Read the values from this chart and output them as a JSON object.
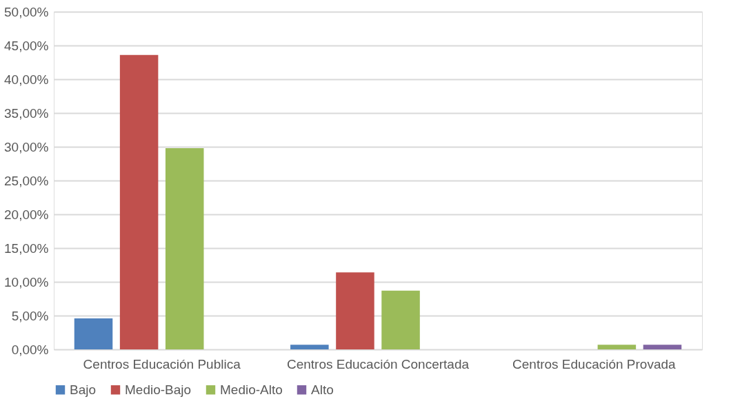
{
  "chart_data": {
    "type": "bar",
    "categories": [
      "Centros Educación Publica",
      "Centros Educación Concertada",
      "Centros Educación Provada"
    ],
    "series": [
      {
        "name": "Bajo",
        "color": "#4f81bd",
        "values": [
          4.6,
          0.7,
          null
        ]
      },
      {
        "name": "Medio-Bajo",
        "color": "#c0504d",
        "values": [
          43.6,
          11.4,
          null
        ]
      },
      {
        "name": "Medio-Alto",
        "color": "#9bbb59",
        "values": [
          29.8,
          8.7,
          0.7
        ]
      },
      {
        "name": "Alto",
        "color": "#8064a2",
        "values": [
          null,
          null,
          0.7
        ]
      }
    ],
    "ylim": [
      0,
      50
    ],
    "yticks": [
      {
        "value": 0,
        "label": "0,00%"
      },
      {
        "value": 5,
        "label": "5,00%"
      },
      {
        "value": 10,
        "label": "10,00%"
      },
      {
        "value": 15,
        "label": "15,00%"
      },
      {
        "value": 20,
        "label": "20,00%"
      },
      {
        "value": 25,
        "label": "25,00%"
      },
      {
        "value": 30,
        "label": "30,00%"
      },
      {
        "value": 35,
        "label": "35,00%"
      },
      {
        "value": 40,
        "label": "40,00%"
      },
      {
        "value": 45,
        "label": "45,00%"
      },
      {
        "value": 50,
        "label": "50,00%"
      }
    ],
    "grid": "y",
    "legend": "bottom"
  }
}
